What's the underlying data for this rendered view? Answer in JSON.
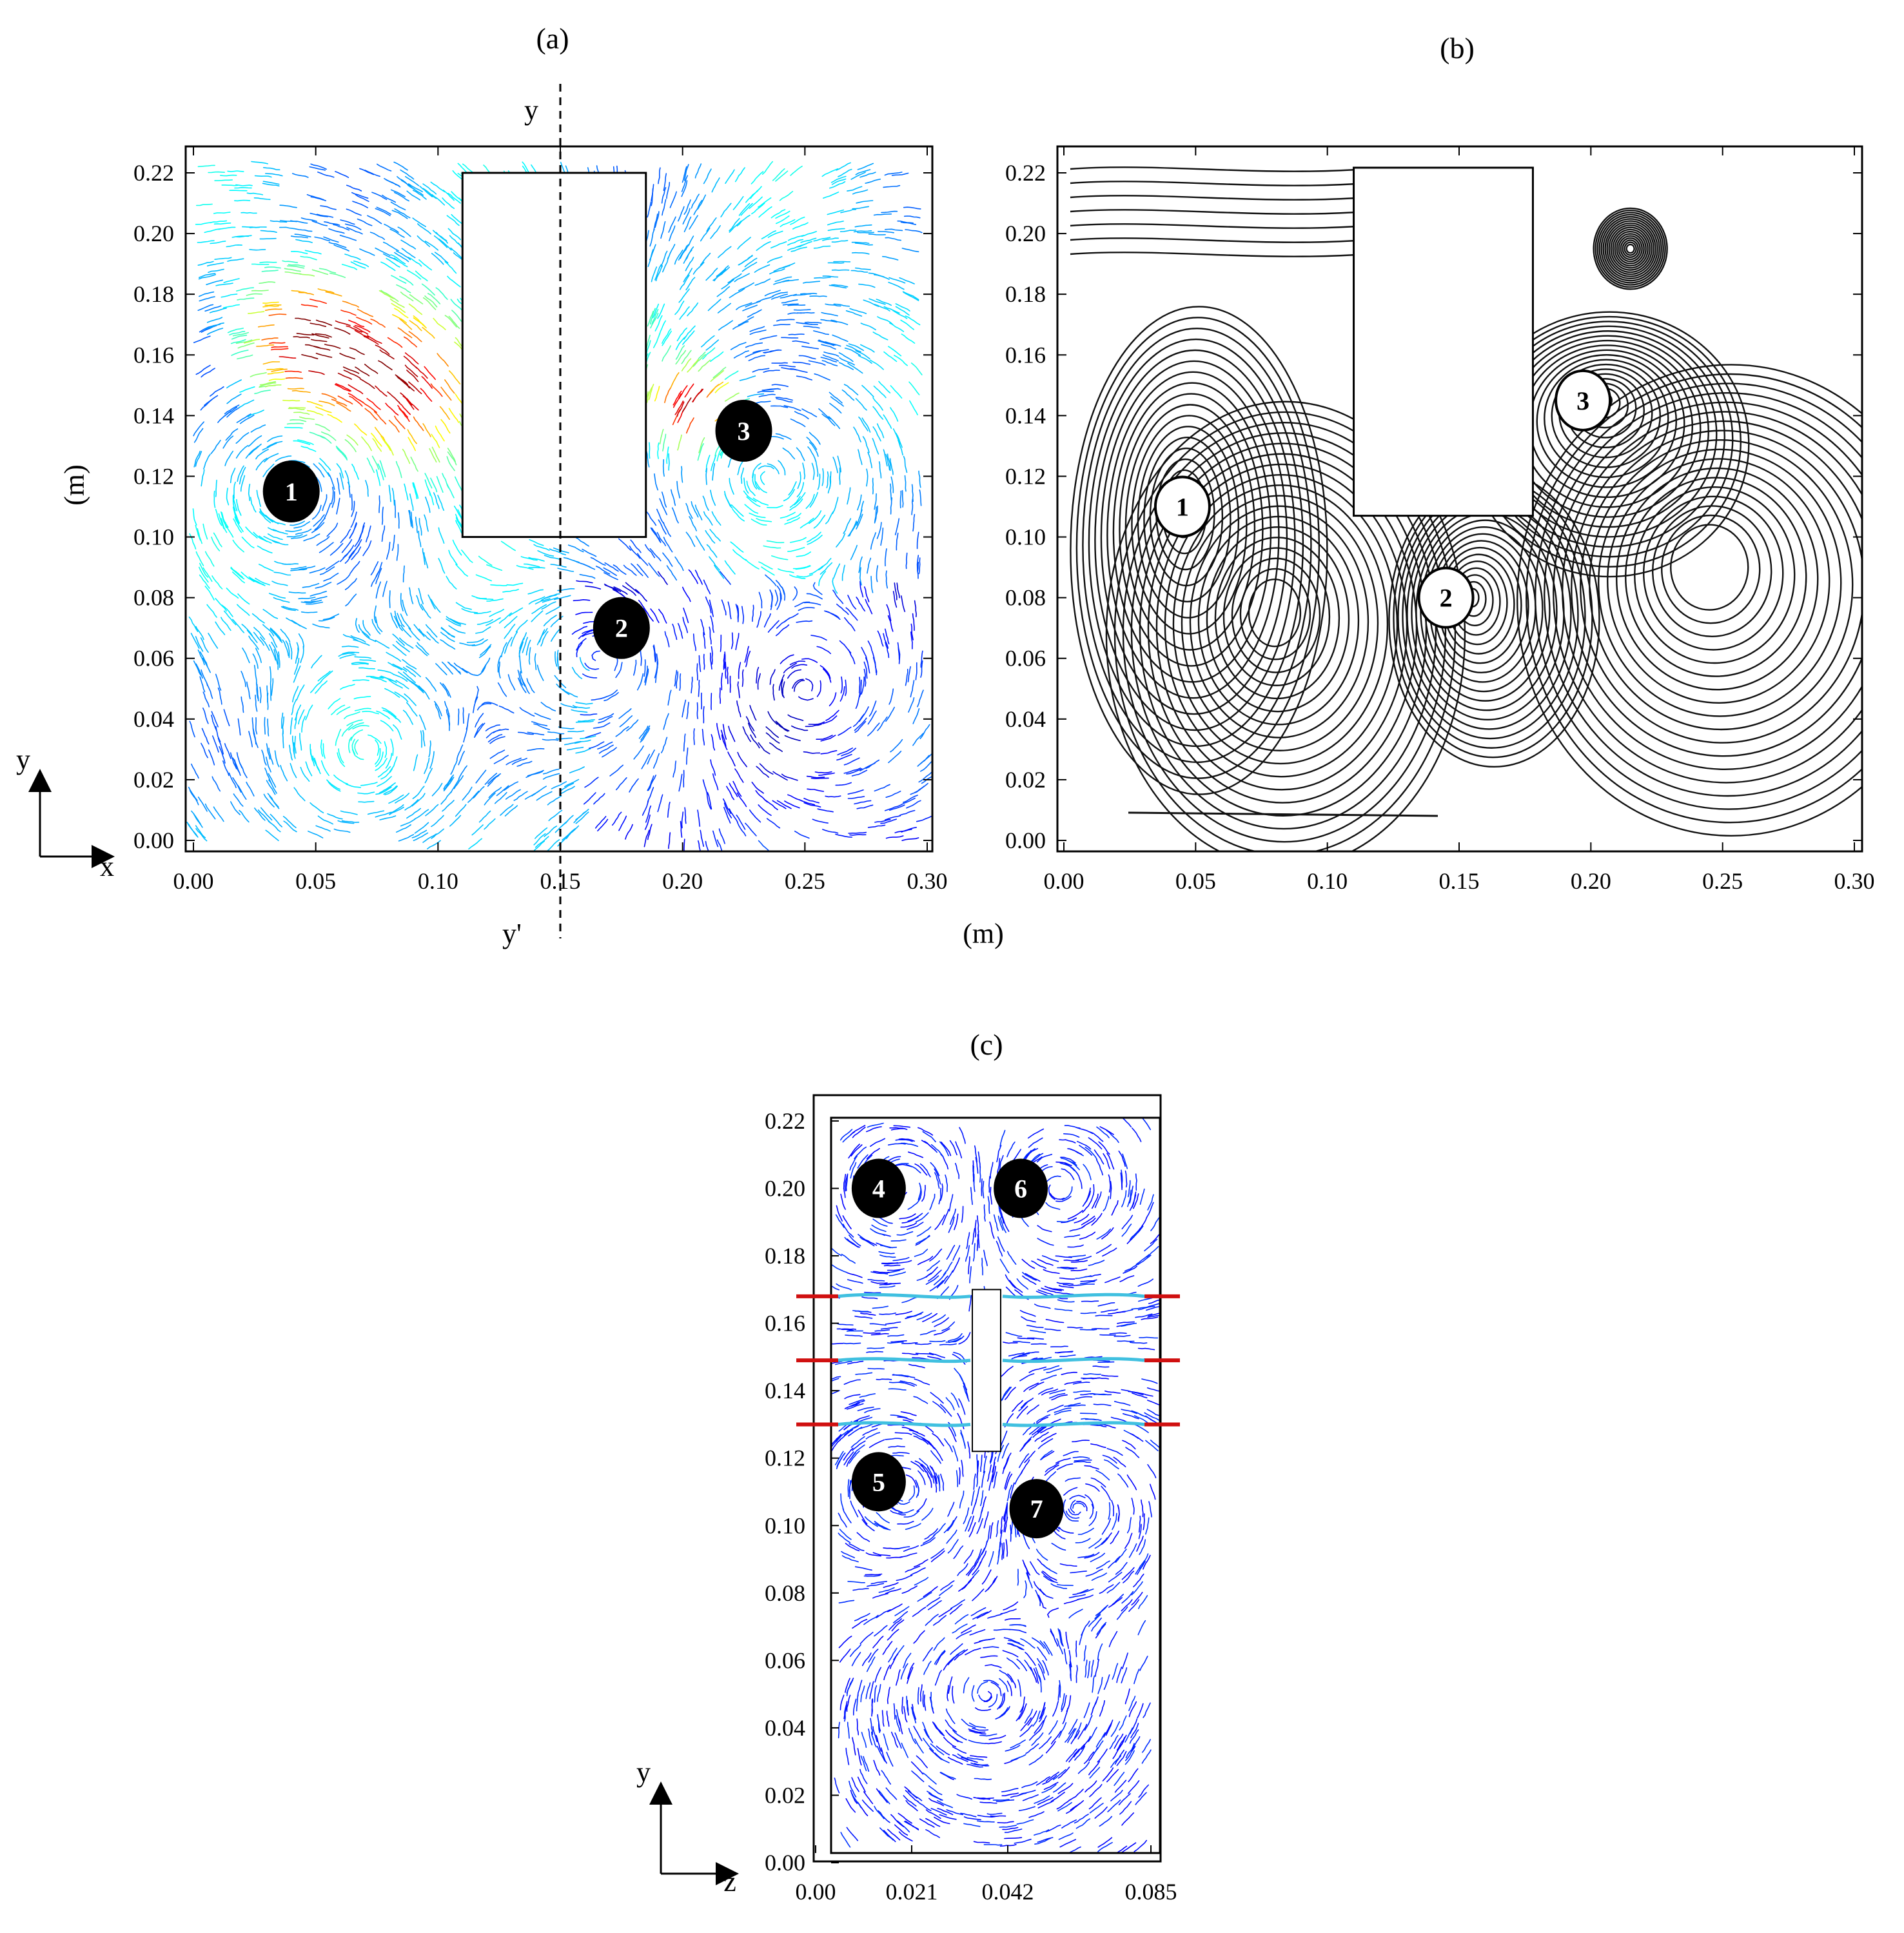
{
  "chart_data": [
    {
      "type": "vector-field",
      "panel_label": "(a)",
      "x_ticks": [
        "0.00",
        "0.05",
        "0.10",
        "0.15",
        "0.20",
        "0.25",
        "0.30"
      ],
      "y_ticks": [
        "0.00",
        "0.02",
        "0.04",
        "0.06",
        "0.08",
        "0.10",
        "0.12",
        "0.14",
        "0.16",
        "0.18",
        "0.20",
        "0.22"
      ],
      "xlim": [
        0,
        0.3
      ],
      "ylim": [
        0,
        0.22
      ],
      "ylabel": "(m)",
      "xlabel": "",
      "section_line": {
        "x": 0.15,
        "top_label": "y",
        "bottom_label": "y'"
      },
      "obstacle": {
        "x0": 0.11,
        "x1": 0.185,
        "y0": 0.1,
        "y1": 0.22
      },
      "vortices": [
        {
          "id": "1",
          "x": 0.04,
          "y": 0.115
        },
        {
          "id": "3",
          "x": 0.225,
          "y": 0.135
        },
        {
          "id": "2",
          "x": 0.175,
          "y": 0.07
        }
      ],
      "axes_glyph": [
        "y",
        "x"
      ],
      "colormap": "jet"
    },
    {
      "type": "streamline",
      "panel_label": "(b)",
      "x_ticks": [
        "0.00",
        "0.05",
        "0.10",
        "0.15",
        "0.20",
        "0.25",
        "0.30"
      ],
      "y_ticks": [
        "0.00",
        "0.02",
        "0.04",
        "0.06",
        "0.08",
        "0.10",
        "0.12",
        "0.14",
        "0.16",
        "0.18",
        "0.20",
        "0.22"
      ],
      "xlim": [
        0,
        0.3
      ],
      "ylim": [
        0,
        0.22
      ],
      "xlabel": "(m)",
      "obstacle": {
        "x0": 0.11,
        "x1": 0.178,
        "y0": 0.107,
        "y1": 0.22
      },
      "vortices": [
        {
          "id": "1",
          "x": 0.045,
          "y": 0.11
        },
        {
          "id": "2",
          "x": 0.145,
          "y": 0.08
        },
        {
          "id": "3",
          "x": 0.197,
          "y": 0.145
        }
      ]
    },
    {
      "type": "vector-field",
      "panel_label": "(c)",
      "x_ticks": [
        "0.00",
        "0.021",
        "0.042",
        "0.085"
      ],
      "y_ticks": [
        "0.00",
        "0.02",
        "0.04",
        "0.06",
        "0.08",
        "0.10",
        "0.12",
        "0.14",
        "0.16",
        "0.18",
        "0.20",
        "0.22"
      ],
      "xlim": [
        0,
        0.085
      ],
      "ylim": [
        0,
        0.22
      ],
      "jets_y": [
        0.168,
        0.149,
        0.13
      ],
      "vortices": [
        {
          "id": "4",
          "x": 0.016,
          "y": 0.2
        },
        {
          "id": "6",
          "x": 0.052,
          "y": 0.2
        },
        {
          "id": "5",
          "x": 0.016,
          "y": 0.113
        },
        {
          "id": "7",
          "x": 0.056,
          "y": 0.105
        }
      ],
      "axes_glyph": [
        "y",
        "z"
      ],
      "colormap": "blue"
    }
  ]
}
